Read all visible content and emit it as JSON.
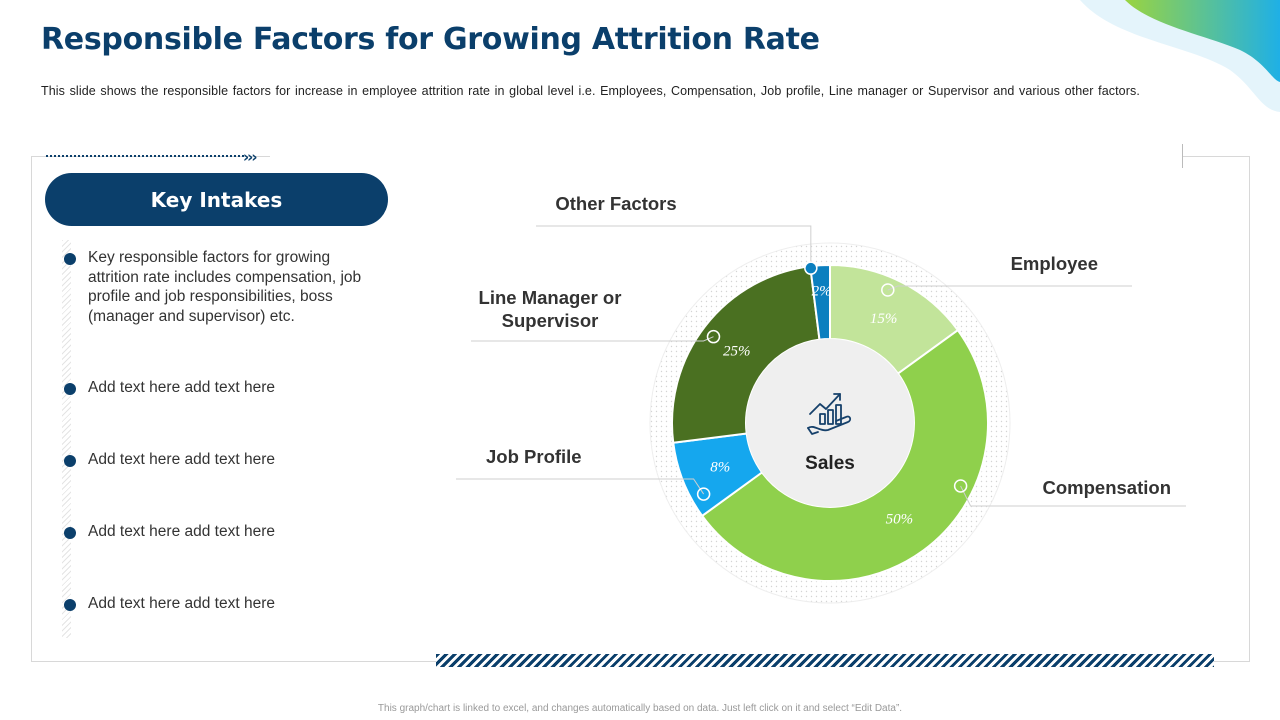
{
  "header": {
    "title": "Responsible Factors for Growing Attrition Rate",
    "subtitle": "This slide shows the responsible factors for increase in employee attrition rate in global level i.e. Employees, Compensation, Job profile, Line manager or Supervisor and various other factors."
  },
  "panel": {
    "heading": "Key Intakes",
    "bullets": [
      "Key responsible factors for growing attrition rate includes compensation, job profile and job responsibilities, boss (manager and supervisor) etc.",
      "Add text here add text here",
      "Add text here add text here",
      "Add text here add text here",
      "Add text here add text here"
    ]
  },
  "chart_data": {
    "type": "pie",
    "center_label": "Sales",
    "center_icon": "growth-hand-icon",
    "slices": [
      {
        "label": "Employee",
        "value": 15,
        "display": "15%",
        "color": "#c2e49a"
      },
      {
        "label": "Compensation",
        "value": 50,
        "display": "50%",
        "color": "#8fd04c"
      },
      {
        "label": "Job Profile",
        "value": 8,
        "display": "8%",
        "color": "#15a7ee"
      },
      {
        "label": "Line Manager or Supervisor",
        "value": 25,
        "display": "25%",
        "color": "#4a7021"
      },
      {
        "label": "Other Factors",
        "value": 2,
        "display": "2%",
        "color": "#0b7fbf"
      }
    ]
  },
  "footer": {
    "note": "This graph/chart is linked to excel, and changes automatically based on data. Just left click on it and select “Edit Data”."
  }
}
